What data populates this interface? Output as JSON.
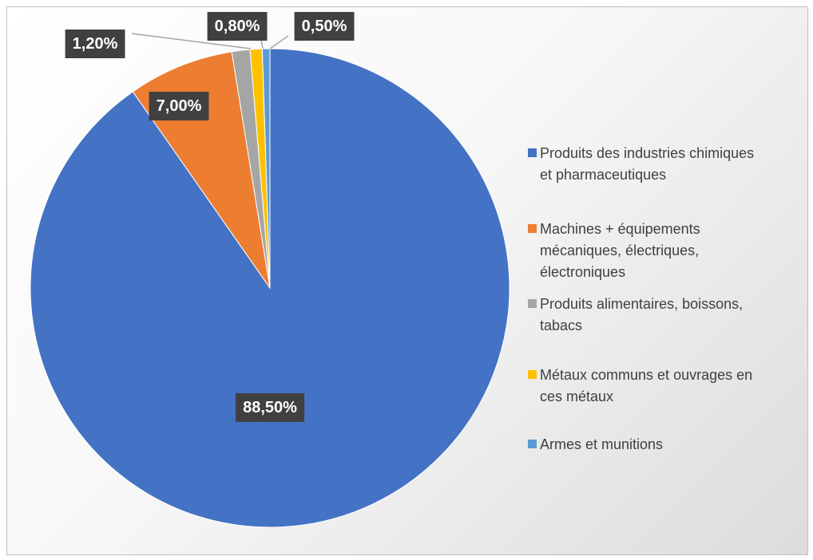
{
  "chart_data": {
    "type": "pie",
    "title": "",
    "start_angle_deg": 0,
    "direction": "clockwise",
    "legend_position": "right",
    "slices": [
      {
        "label": "Produits des industries chimiques et pharmaceutiques",
        "value": 88.5,
        "display": "88,50%",
        "color": "#4472C4"
      },
      {
        "label": "Machines + équipements mécaniques, électriques, électroniques",
        "value": 7.0,
        "display": "7,00%",
        "color": "#ED7D31"
      },
      {
        "label": "Produits alimentaires, boissons, tabacs",
        "value": 1.2,
        "display": "1,20%",
        "color": "#A5A5A5"
      },
      {
        "label": "Métaux communs et ouvrages en ces métaux",
        "value": 0.8,
        "display": "0,80%",
        "color": "#FFC000"
      },
      {
        "label": "Armes et munitions",
        "value": 0.5,
        "display": "0,50%",
        "color": "#5B9BD5"
      }
    ],
    "legend": [
      {
        "text": "Produits des industries chimiques\net pharmaceutiques"
      },
      {
        "text": "Machines + équipements\nmécaniques, électriques,\nélectroniques"
      },
      {
        "text": "Produits alimentaires, boissons,\ntabacs"
      },
      {
        "text": "Métaux communs et ouvrages en\nces métaux"
      },
      {
        "text": "Armes et munitions"
      }
    ]
  }
}
